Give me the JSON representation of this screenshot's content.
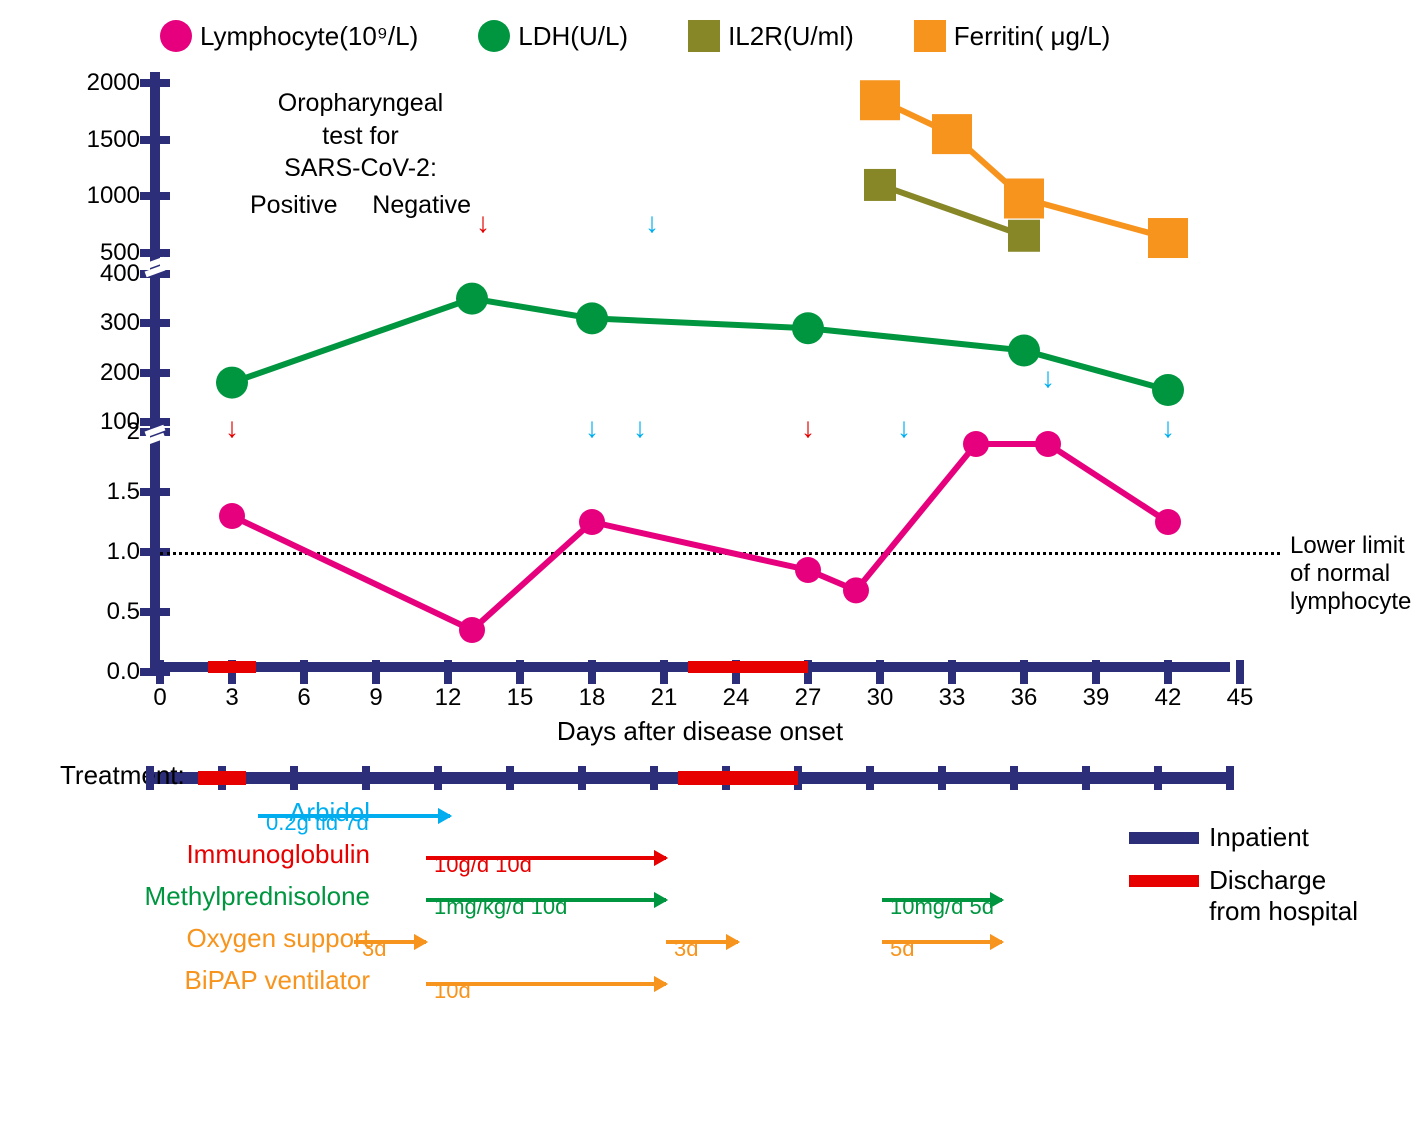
{
  "legend": {
    "items": [
      {
        "label": "Lymphocyte(10⁹/L)",
        "color": "#e6007e",
        "shape": "circle"
      },
      {
        "label": "LDH(U/L)",
        "color": "#009640",
        "shape": "circle"
      },
      {
        "label": "IL2R(U/ml)",
        "color": "#878728",
        "shape": "square"
      },
      {
        "label": "Ferritin( μg/L)",
        "color": "#f7941d",
        "shape": "square"
      }
    ]
  },
  "chart": {
    "x_axis": {
      "title": "Days after disease onset",
      "min": 0,
      "max": 45,
      "step": 3,
      "ticks": [
        0,
        3,
        6,
        9,
        12,
        15,
        18,
        21,
        24,
        27,
        30,
        33,
        36,
        39,
        42,
        45
      ],
      "axis_color": "#2c2e7a"
    },
    "y_axis": {
      "segments": [
        {
          "range_label": "bottom",
          "ticks": [
            0.0,
            0.5,
            1.0,
            1.5,
            2
          ],
          "height_frac": 0.4,
          "min": 0,
          "max": 2
        },
        {
          "range_label": "middle",
          "ticks": [
            100,
            200,
            300,
            400
          ],
          "height_frac": 0.28,
          "min": 80,
          "max": 420
        },
        {
          "range_label": "top",
          "ticks": [
            500,
            1000,
            1500,
            2000
          ],
          "height_frac": 0.32,
          "min": 400,
          "max": 2100
        }
      ]
    },
    "lower_limit": {
      "value": 1.0,
      "label": "Lower limit\nof normal\nlymphocyte"
    },
    "oropharyngeal_label": "Oropharyngeal\ntest for\nSARS-CoV-2:",
    "positive_label": "Positive",
    "negative_label": "Negative",
    "discharge_periods": [
      {
        "start": 2,
        "end": 4
      },
      {
        "start": 22,
        "end": 27
      }
    ],
    "series": {
      "lymphocyte": {
        "color": "#e6007e",
        "shape": "circle",
        "size": 26,
        "line_width": 6,
        "points": [
          {
            "x": 3,
            "y": 1.3
          },
          {
            "x": 13,
            "y": 0.35
          },
          {
            "x": 18,
            "y": 1.25
          },
          {
            "x": 27,
            "y": 0.85
          },
          {
            "x": 29,
            "y": 0.68
          },
          {
            "x": 34,
            "y": 1.9
          },
          {
            "x": 37,
            "y": 1.9
          },
          {
            "x": 42,
            "y": 1.25
          }
        ]
      },
      "ldh": {
        "color": "#009640",
        "shape": "circle",
        "size": 32,
        "line_width": 6,
        "points": [
          {
            "x": 3,
            "y": 180
          },
          {
            "x": 13,
            "y": 350
          },
          {
            "x": 18,
            "y": 310
          },
          {
            "x": 27,
            "y": 290
          },
          {
            "x": 36,
            "y": 245
          },
          {
            "x": 42,
            "y": 165
          }
        ]
      },
      "il2r": {
        "color": "#878728",
        "shape": "square",
        "size": 32,
        "line_width": 6,
        "points": [
          {
            "x": 30,
            "y": 1100
          },
          {
            "x": 36,
            "y": 650
          }
        ]
      },
      "ferritin": {
        "color": "#f7941d",
        "shape": "square",
        "size": 40,
        "line_width": 6,
        "points": [
          {
            "x": 30,
            "y": 1850
          },
          {
            "x": 33,
            "y": 1550
          },
          {
            "x": 36,
            "y": 980
          },
          {
            "x": 42,
            "y": 630
          }
        ]
      }
    },
    "test_arrows": [
      {
        "x": 3,
        "result": "positive",
        "color": "#e60000"
      },
      {
        "x": 18,
        "result": "negative",
        "color": "#00aeef"
      },
      {
        "x": 20,
        "result": "negative",
        "color": "#00aeef"
      },
      {
        "x": 27,
        "result": "positive",
        "color": "#e60000"
      },
      {
        "x": 31,
        "result": "negative",
        "color": "#00aeef"
      },
      {
        "x": 37,
        "result": "negative",
        "color": "#00aeef",
        "high": true
      },
      {
        "x": 42,
        "result": "negative",
        "color": "#00aeef"
      }
    ]
  },
  "treatment": {
    "label": "Treatment:",
    "axis_ticks": [
      0,
      3,
      6,
      9,
      12,
      15,
      18,
      21,
      24,
      27,
      30,
      33,
      36,
      39,
      42,
      45
    ],
    "discharge_periods": [
      {
        "start": 2,
        "end": 4
      },
      {
        "start": 22,
        "end": 27
      }
    ],
    "rows": [
      {
        "name": "Arbidol",
        "color": "#00aeef",
        "bars": [
          {
            "start": 2,
            "end": 10,
            "label": "0.2g tid 7d"
          }
        ]
      },
      {
        "name": "Immunoglobulin",
        "color": "#e60000",
        "bars": [
          {
            "start": 9,
            "end": 19,
            "label": "10g/d 10d"
          }
        ]
      },
      {
        "name": "Methylprednisolone",
        "color": "#009640",
        "bars": [
          {
            "start": 9,
            "end": 19,
            "label": "1mg/kg/d 10d"
          },
          {
            "start": 28,
            "end": 33,
            "label": "10mg/d 5d"
          }
        ]
      },
      {
        "name": "Oxygen support",
        "color": "#f7941d",
        "bars": [
          {
            "start": 6,
            "end": 9,
            "label": "3d"
          },
          {
            "start": 19,
            "end": 22,
            "label": "3d"
          },
          {
            "start": 28,
            "end": 33,
            "label": "5d"
          }
        ]
      },
      {
        "name": "BiPAP ventilator",
        "color": "#f7941d",
        "bars": [
          {
            "start": 9,
            "end": 19,
            "label": "10d"
          }
        ]
      }
    ],
    "status_legend": {
      "inpatient": {
        "label": "Inpatient",
        "color": "#2c2e7a"
      },
      "discharge": {
        "label": "Discharge\nfrom hospital",
        "color": "#e60000"
      }
    }
  }
}
